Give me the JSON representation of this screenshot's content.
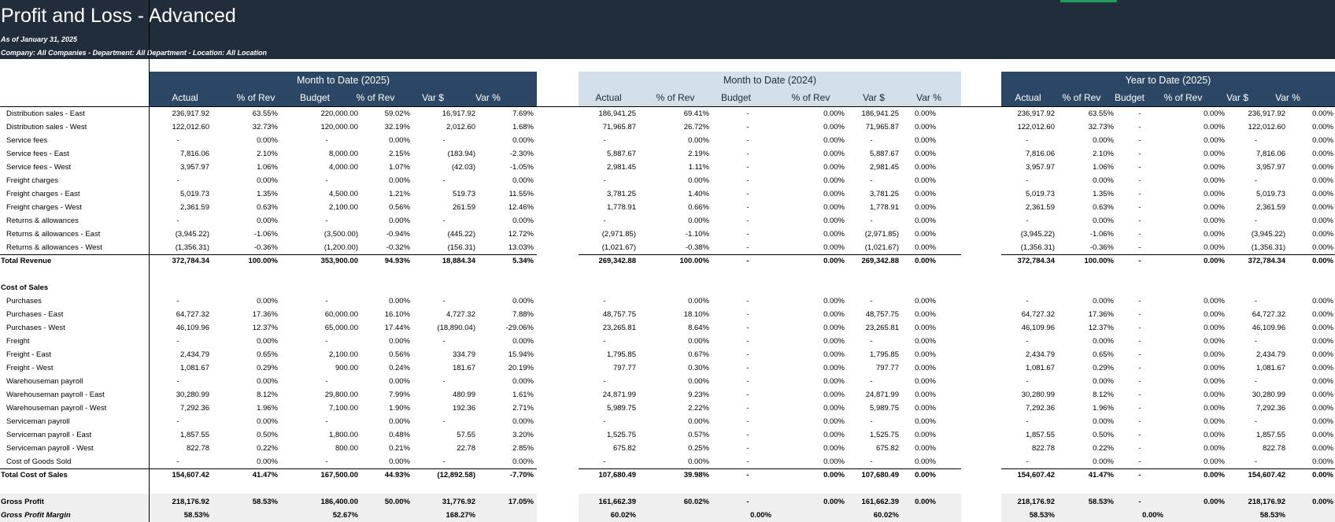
{
  "report": {
    "title": "Profit and Loss - Advanced",
    "as_of": "As of January 31, 2025",
    "filters": "Company: All Companies - Department: All Department - Location: All Location"
  },
  "column_groups": [
    {
      "title": "Month to Date (2025)",
      "headers": [
        "Actual",
        "% of Rev",
        "Budget",
        "% of Rev",
        "Var $",
        "Var %"
      ]
    },
    {
      "title": "Month to Date (2024)",
      "headers": [
        "Actual",
        "% of Rev",
        "Budget",
        "% of Rev",
        "Var $",
        "Var %"
      ]
    },
    {
      "title": "Year to Date (2025)",
      "headers": [
        "Actual",
        "% of Rev",
        "Budget",
        "% of Rev",
        "Var $",
        "Var %"
      ]
    }
  ],
  "rows": [
    {
      "label": "Distribution sales - East",
      "type": "item",
      "values": [
        "236,917.92",
        "63.55%",
        "220,000.00",
        "59.02%",
        "16,917.92",
        "7.69%",
        "186,941.25",
        "69.41%",
        "-",
        "0.00%",
        "186,941.25",
        "0.00%",
        "236,917.92",
        "63.55%",
        "-",
        "0.00%",
        "236,917.92",
        "0.00%"
      ]
    },
    {
      "label": "Distribution sales - West",
      "type": "item",
      "values": [
        "122,012.60",
        "32.73%",
        "120,000.00",
        "32.19%",
        "2,012.60",
        "1.68%",
        "71,965.87",
        "26.72%",
        "-",
        "0.00%",
        "71,965.87",
        "0.00%",
        "122,012.60",
        "32.73%",
        "-",
        "0.00%",
        "122,012.60",
        "0.00%"
      ]
    },
    {
      "label": "Service fees",
      "type": "item",
      "values": [
        "-",
        "0.00%",
        "-",
        "0.00%",
        "-",
        "0.00%",
        "-",
        "0.00%",
        "-",
        "0.00%",
        "-",
        "0.00%",
        "-",
        "0.00%",
        "-",
        "0.00%",
        "-",
        "0.00%"
      ]
    },
    {
      "label": "Service fees - East",
      "type": "item",
      "values": [
        "7,816.06",
        "2.10%",
        "8,000.00",
        "2.15%",
        "(183.94)",
        "-2.30%",
        "5,887.67",
        "2.19%",
        "-",
        "0.00%",
        "5,887.67",
        "0.00%",
        "7,816.06",
        "2.10%",
        "-",
        "0.00%",
        "7,816.06",
        "0.00%"
      ]
    },
    {
      "label": "Service fees - West",
      "type": "item",
      "values": [
        "3,957.97",
        "1.06%",
        "4,000.00",
        "1.07%",
        "(42.03)",
        "-1.05%",
        "2,981.45",
        "1.11%",
        "-",
        "0.00%",
        "2,981.45",
        "0.00%",
        "3,957.97",
        "1.06%",
        "-",
        "0.00%",
        "3,957.97",
        "0.00%"
      ]
    },
    {
      "label": "Freight charges",
      "type": "item",
      "values": [
        "-",
        "0.00%",
        "-",
        "0.00%",
        "-",
        "0.00%",
        "-",
        "0.00%",
        "-",
        "0.00%",
        "-",
        "0.00%",
        "-",
        "0.00%",
        "-",
        "0.00%",
        "-",
        "0.00%"
      ]
    },
    {
      "label": "Freight charges - East",
      "type": "item",
      "values": [
        "5,019.73",
        "1.35%",
        "4,500.00",
        "1.21%",
        "519.73",
        "11.55%",
        "3,781.25",
        "1.40%",
        "-",
        "0.00%",
        "3,781.25",
        "0.00%",
        "5,019.73",
        "1.35%",
        "-",
        "0.00%",
        "5,019.73",
        "0.00%"
      ]
    },
    {
      "label": "Freight charges - West",
      "type": "item",
      "values": [
        "2,361.59",
        "0.63%",
        "2,100.00",
        "0.56%",
        "261.59",
        "12.46%",
        "1,778.91",
        "0.66%",
        "-",
        "0.00%",
        "1,778.91",
        "0.00%",
        "2,361.59",
        "0.63%",
        "-",
        "0.00%",
        "2,361.59",
        "0.00%"
      ]
    },
    {
      "label": "Returns & allowances",
      "type": "item",
      "values": [
        "-",
        "0.00%",
        "-",
        "0.00%",
        "-",
        "0.00%",
        "-",
        "0.00%",
        "-",
        "0.00%",
        "-",
        "0.00%",
        "-",
        "0.00%",
        "-",
        "0.00%",
        "-",
        "0.00%"
      ]
    },
    {
      "label": "Returns & allowances - East",
      "type": "item",
      "values": [
        "(3,945.22)",
        "-1.06%",
        "(3,500.00)",
        "-0.94%",
        "(445.22)",
        "12.72%",
        "(2,971.85)",
        "-1.10%",
        "-",
        "0.00%",
        "(2,971.85)",
        "0.00%",
        "(3,945.22)",
        "-1.06%",
        "-",
        "0.00%",
        "(3,945.22)",
        "0.00%"
      ]
    },
    {
      "label": "Returns & allowances - West",
      "type": "item",
      "values": [
        "(1,356.31)",
        "-0.36%",
        "(1,200.00)",
        "-0.32%",
        "(156.31)",
        "13.03%",
        "(1,021.67)",
        "-0.38%",
        "-",
        "0.00%",
        "(1,021.67)",
        "0.00%",
        "(1,356.31)",
        "-0.36%",
        "-",
        "0.00%",
        "(1,356.31)",
        "0.00%"
      ]
    },
    {
      "label": "Total Revenue",
      "type": "total",
      "values": [
        "372,784.34",
        "100.00%",
        "353,900.00",
        "94.93%",
        "18,884.34",
        "5.34%",
        "269,342.88",
        "100.00%",
        "-",
        "0.00%",
        "269,342.88",
        "0.00%",
        "372,784.34",
        "100.00%",
        "-",
        "0.00%",
        "372,784.34",
        "0.00%"
      ]
    },
    {
      "label": "",
      "type": "blank",
      "values": []
    },
    {
      "label": "Cost of Sales",
      "type": "section",
      "values": []
    },
    {
      "label": "Purchases",
      "type": "item",
      "values": [
        "-",
        "0.00%",
        "-",
        "0.00%",
        "-",
        "0.00%",
        "-",
        "0.00%",
        "-",
        "0.00%",
        "-",
        "0.00%",
        "-",
        "0.00%",
        "-",
        "0.00%",
        "-",
        "0.00%"
      ]
    },
    {
      "label": "Purchases - East",
      "type": "item",
      "values": [
        "64,727.32",
        "17.36%",
        "60,000.00",
        "16.10%",
        "4,727.32",
        "7.88%",
        "48,757.75",
        "18.10%",
        "-",
        "0.00%",
        "48,757.75",
        "0.00%",
        "64,727.32",
        "17.36%",
        "-",
        "0.00%",
        "64,727.32",
        "0.00%"
      ]
    },
    {
      "label": "Purchases - West",
      "type": "item",
      "values": [
        "46,109.96",
        "12.37%",
        "65,000.00",
        "17.44%",
        "(18,890.04)",
        "-29.06%",
        "23,265.81",
        "8.64%",
        "-",
        "0.00%",
        "23,265.81",
        "0.00%",
        "46,109.96",
        "12.37%",
        "-",
        "0.00%",
        "46,109.96",
        "0.00%"
      ]
    },
    {
      "label": "Freight",
      "type": "item",
      "values": [
        "-",
        "0.00%",
        "-",
        "0.00%",
        "-",
        "0.00%",
        "-",
        "0.00%",
        "-",
        "0.00%",
        "-",
        "0.00%",
        "-",
        "0.00%",
        "-",
        "0.00%",
        "-",
        "0.00%"
      ]
    },
    {
      "label": "Freight - East",
      "type": "item",
      "values": [
        "2,434.79",
        "0.65%",
        "2,100.00",
        "0.56%",
        "334.79",
        "15.94%",
        "1,795.85",
        "0.67%",
        "-",
        "0.00%",
        "1,795.85",
        "0.00%",
        "2,434.79",
        "0.65%",
        "-",
        "0.00%",
        "2,434.79",
        "0.00%"
      ]
    },
    {
      "label": "Freight - West",
      "type": "item",
      "values": [
        "1,081.67",
        "0.29%",
        "900.00",
        "0.24%",
        "181.67",
        "20.19%",
        "797.77",
        "0.30%",
        "-",
        "0.00%",
        "797.77",
        "0.00%",
        "1,081.67",
        "0.29%",
        "-",
        "0.00%",
        "1,081.67",
        "0.00%"
      ]
    },
    {
      "label": "Warehouseman payroll",
      "type": "item",
      "values": [
        "-",
        "0.00%",
        "-",
        "0.00%",
        "-",
        "0.00%",
        "-",
        "0.00%",
        "-",
        "0.00%",
        "-",
        "0.00%",
        "-",
        "0.00%",
        "-",
        "0.00%",
        "-",
        "0.00%"
      ]
    },
    {
      "label": "Warehouseman payroll - East",
      "type": "item",
      "values": [
        "30,280.99",
        "8.12%",
        "29,800.00",
        "7.99%",
        "480.99",
        "1.61%",
        "24,871.99",
        "9.23%",
        "-",
        "0.00%",
        "24,871.99",
        "0.00%",
        "30,280.99",
        "8.12%",
        "-",
        "0.00%",
        "30,280.99",
        "0.00%"
      ]
    },
    {
      "label": "Warehouseman payroll - West",
      "type": "item",
      "values": [
        "7,292.36",
        "1.96%",
        "7,100.00",
        "1.90%",
        "192.36",
        "2.71%",
        "5,989.75",
        "2.22%",
        "-",
        "0.00%",
        "5,989.75",
        "0.00%",
        "7,292.36",
        "1.96%",
        "-",
        "0.00%",
        "7,292.36",
        "0.00%"
      ]
    },
    {
      "label": "Serviceman payroll",
      "type": "item",
      "values": [
        "-",
        "0.00%",
        "-",
        "0.00%",
        "-",
        "0.00%",
        "-",
        "0.00%",
        "-",
        "0.00%",
        "-",
        "0.00%",
        "-",
        "0.00%",
        "-",
        "0.00%",
        "-",
        "0.00%"
      ]
    },
    {
      "label": "Serviceman payroll - East",
      "type": "item",
      "values": [
        "1,857.55",
        "0.50%",
        "1,800.00",
        "0.48%",
        "57.55",
        "3.20%",
        "1,525.75",
        "0.57%",
        "-",
        "0.00%",
        "1,525.75",
        "0.00%",
        "1,857.55",
        "0.50%",
        "-",
        "0.00%",
        "1,857.55",
        "0.00%"
      ]
    },
    {
      "label": "Serviceman payroll - West",
      "type": "item",
      "values": [
        "822.78",
        "0.22%",
        "800.00",
        "0.21%",
        "22.78",
        "2.85%",
        "675.82",
        "0.25%",
        "-",
        "0.00%",
        "675.82",
        "0.00%",
        "822.78",
        "0.22%",
        "-",
        "0.00%",
        "822.78",
        "0.00%"
      ]
    },
    {
      "label": "Cost of Goods Sold",
      "type": "item",
      "values": [
        "-",
        "0.00%",
        "-",
        "0.00%",
        "-",
        "0.00%",
        "-",
        "0.00%",
        "-",
        "0.00%",
        "-",
        "0.00%",
        "-",
        "0.00%",
        "-",
        "0.00%",
        "-",
        "0.00%"
      ]
    },
    {
      "label": "Total Cost of Sales",
      "type": "total",
      "values": [
        "154,607.42",
        "41.47%",
        "167,500.00",
        "44.93%",
        "(12,892.58)",
        "-7.70%",
        "107,680.49",
        "39.98%",
        "-",
        "0.00%",
        "107,680.49",
        "0.00%",
        "154,607.42",
        "41.47%",
        "-",
        "0.00%",
        "154,607.42",
        "0.00%"
      ]
    },
    {
      "label": "",
      "type": "blank",
      "values": []
    },
    {
      "label": "Gross Profit",
      "type": "gp",
      "values": [
        "218,176.92",
        "58.53%",
        "186,400.00",
        "50.00%",
        "31,776.92",
        "17.05%",
        "161,662.39",
        "60.02%",
        "-",
        "0.00%",
        "161,662.39",
        "0.00%",
        "218,176.92",
        "58.53%",
        "-",
        "0.00%",
        "218,176.92",
        "0.00%"
      ]
    },
    {
      "label": "Gross Profit Margin",
      "type": "gpm",
      "values": [
        "58.53%",
        "",
        "52.67%",
        "",
        "168.27%",
        "",
        "60.02%",
        "",
        "0.00%",
        "",
        "60.02%",
        "",
        "58.53%",
        "",
        "0.00%",
        "",
        "58.53%",
        ""
      ]
    }
  ]
}
